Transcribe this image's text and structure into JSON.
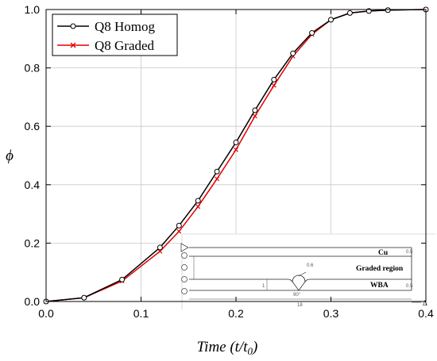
{
  "chart_data": {
    "type": "line",
    "xlabel_main": "Time",
    "xlabel_paren_open": "(",
    "xlabel_t": "t",
    "xlabel_slash": "/",
    "xlabel_t0": "t",
    "xlabel_t0_sub": "0",
    "xlabel_paren_close": ")",
    "ylabel": "ϕ",
    "xlim": [
      0.0,
      0.4
    ],
    "ylim": [
      0.0,
      1.0
    ],
    "xticks": [
      "0.0",
      "0.1",
      "0.2",
      "0.3",
      "0.4"
    ],
    "yticks": [
      "0.0",
      "0.2",
      "0.4",
      "0.6",
      "0.8",
      "1.0"
    ],
    "grid": true,
    "legend_position": "top-left",
    "series": [
      {
        "name": "Q8 Homog",
        "color": "#000000",
        "marker": "circle",
        "x": [
          0.0,
          0.04,
          0.08,
          0.12,
          0.14,
          0.16,
          0.18,
          0.2,
          0.22,
          0.24,
          0.26,
          0.28,
          0.3,
          0.32,
          0.34,
          0.36,
          0.4
        ],
        "y": [
          0.0,
          0.013,
          0.075,
          0.185,
          0.26,
          0.345,
          0.445,
          0.545,
          0.655,
          0.76,
          0.85,
          0.92,
          0.965,
          0.988,
          0.995,
          0.998,
          1.0
        ]
      },
      {
        "name": "Q8 Graded",
        "color": "#e00000",
        "marker": "x",
        "x": [
          0.0,
          0.04,
          0.08,
          0.12,
          0.14,
          0.16,
          0.18,
          0.2,
          0.22,
          0.24,
          0.26,
          0.28,
          0.3,
          0.32,
          0.34,
          0.36,
          0.4
        ],
        "y": [
          0.0,
          0.013,
          0.07,
          0.172,
          0.24,
          0.325,
          0.42,
          0.52,
          0.635,
          0.74,
          0.84,
          0.915,
          0.965,
          0.988,
          0.995,
          0.998,
          1.0
        ]
      }
    ]
  },
  "inset": {
    "label_cu": "Cu",
    "label_graded": "Graded region",
    "label_wba": "WBA",
    "label_angle": "90°",
    "label_radius": "0.6",
    "label_delta": "Δ",
    "label_width": "18",
    "label_dim_cu": "0.5",
    "label_dim_wba": "0.5",
    "label_dim_h": "1"
  }
}
